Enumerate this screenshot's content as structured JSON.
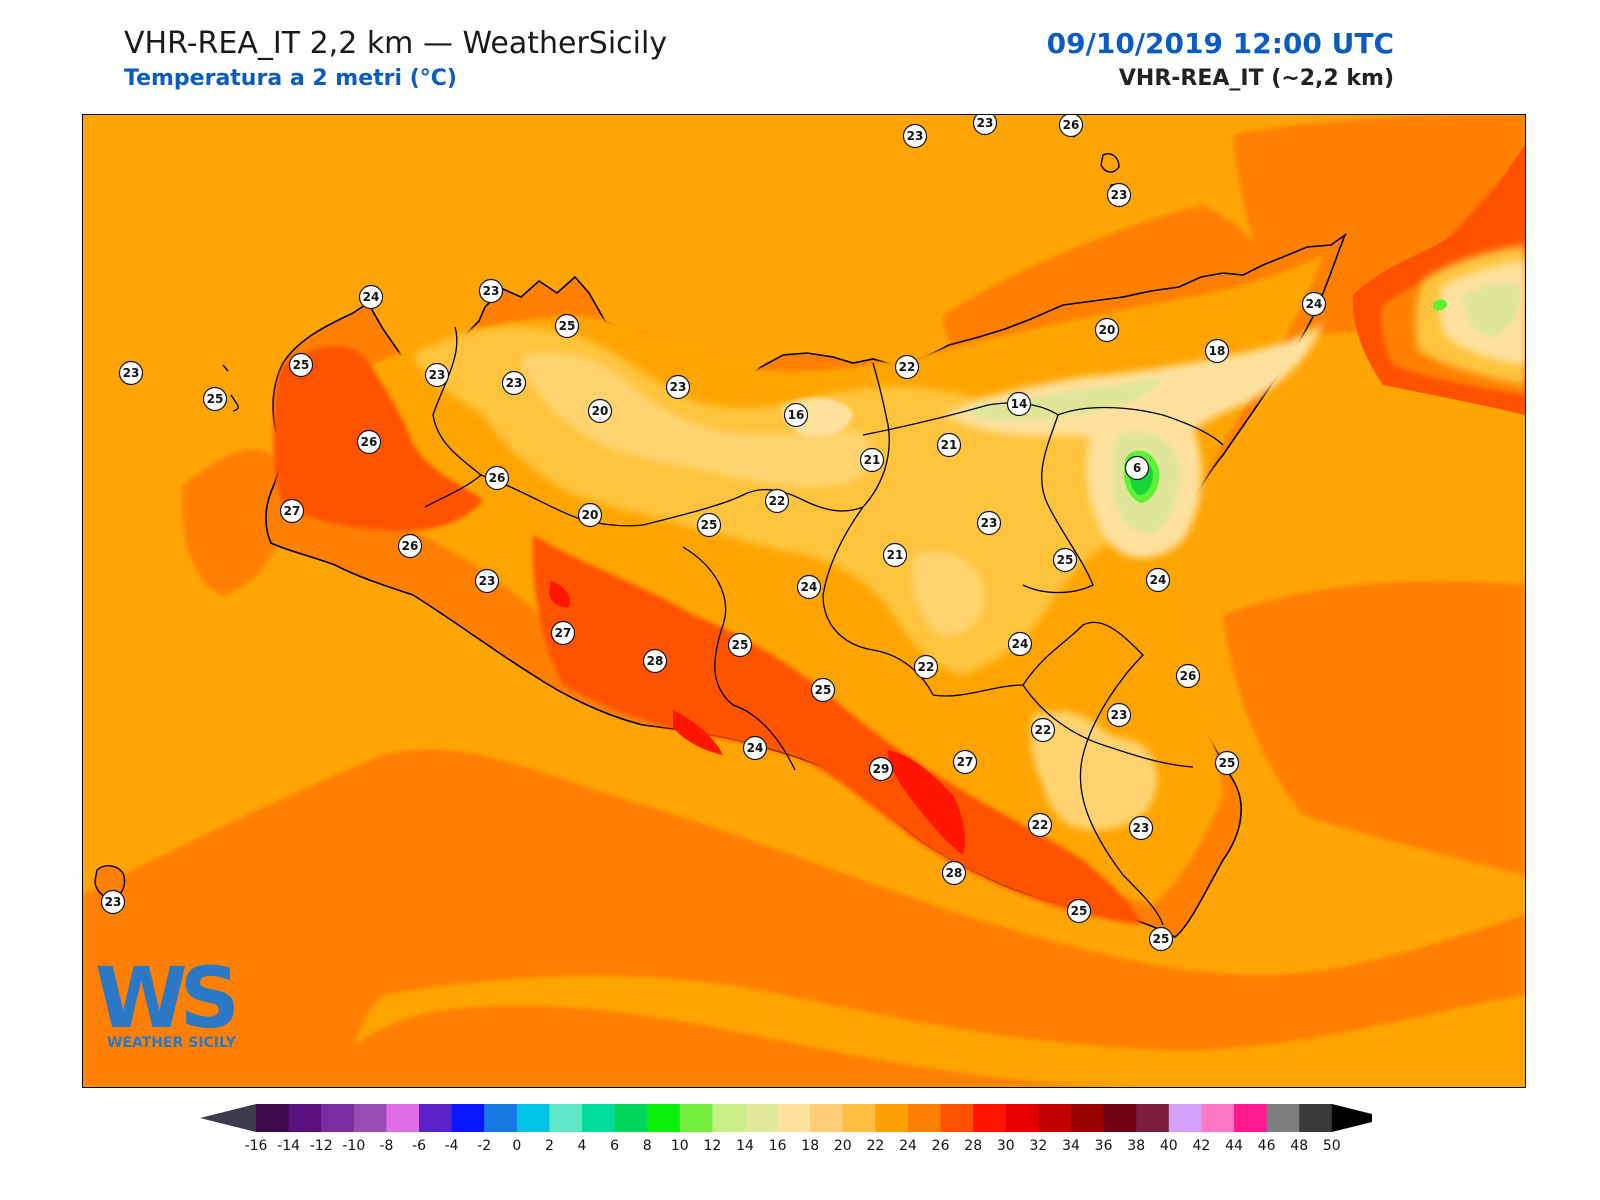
{
  "header": {
    "title_left": "VHR-REA_IT 2,2 km — WeatherSicily",
    "subtitle_left": "Temperatura a 2 metri (°C)",
    "title_right": "09/10/2019 12:00 UTC",
    "subtitle_right": "VHR-REA_IT (~2,2 km)"
  },
  "colors": {
    "title_blue": "#0b5bc0",
    "sea_base": "#fea405",
    "warm_26": "#ff8000",
    "hot_28": "#ff5200",
    "hot_30": "#ff1500",
    "land_22": "#ffc43d",
    "land_20": "#ffd470",
    "cool_18": "#ffe19e",
    "cool_14": "#dfe69a",
    "cool_10": "#5cf235",
    "cool_6": "#18d63a"
  },
  "logo": {
    "letters": "WS",
    "caption": "WEATHER SICILY"
  },
  "stations": [
    {
      "id": "s1",
      "value": "23"
    },
    {
      "id": "s2",
      "value": "23"
    },
    {
      "id": "s3",
      "value": "26"
    },
    {
      "id": "s4",
      "value": "23"
    },
    {
      "id": "s5",
      "value": "24"
    },
    {
      "id": "s6",
      "value": "23"
    },
    {
      "id": "s7",
      "value": "25"
    },
    {
      "id": "s8",
      "value": "23"
    },
    {
      "id": "s9",
      "value": "23"
    },
    {
      "id": "s10",
      "value": "25"
    },
    {
      "id": "s11",
      "value": "26"
    },
    {
      "id": "s12",
      "value": "25"
    },
    {
      "id": "s13",
      "value": "23"
    },
    {
      "id": "s14",
      "value": "20"
    },
    {
      "id": "s15",
      "value": "23"
    },
    {
      "id": "s16",
      "value": "16"
    },
    {
      "id": "s17",
      "value": "22"
    },
    {
      "id": "s18",
      "value": "20"
    },
    {
      "id": "s19",
      "value": "18"
    },
    {
      "id": "s20",
      "value": "24"
    },
    {
      "id": "s21",
      "value": "14"
    },
    {
      "id": "s22",
      "value": "21"
    },
    {
      "id": "s23",
      "value": "21"
    },
    {
      "id": "s24",
      "value": "6"
    },
    {
      "id": "s25",
      "value": "26"
    },
    {
      "id": "s26",
      "value": "27"
    },
    {
      "id": "s27",
      "value": "20"
    },
    {
      "id": "s28",
      "value": "25"
    },
    {
      "id": "s29",
      "value": "22"
    },
    {
      "id": "s30",
      "value": "23"
    },
    {
      "id": "s31",
      "value": "26"
    },
    {
      "id": "s32",
      "value": "21"
    },
    {
      "id": "s33",
      "value": "25"
    },
    {
      "id": "s34",
      "value": "24"
    },
    {
      "id": "s35",
      "value": "23"
    },
    {
      "id": "s36",
      "value": "24"
    },
    {
      "id": "s37",
      "value": "27"
    },
    {
      "id": "s38",
      "value": "25"
    },
    {
      "id": "s39",
      "value": "24"
    },
    {
      "id": "s40",
      "value": "28"
    },
    {
      "id": "s41",
      "value": "22"
    },
    {
      "id": "s42",
      "value": "26"
    },
    {
      "id": "s43",
      "value": "25"
    },
    {
      "id": "s44",
      "value": "23"
    },
    {
      "id": "s45",
      "value": "22"
    },
    {
      "id": "s46",
      "value": "24"
    },
    {
      "id": "s47",
      "value": "29"
    },
    {
      "id": "s48",
      "value": "27"
    },
    {
      "id": "s49",
      "value": "25"
    },
    {
      "id": "s50",
      "value": "22"
    },
    {
      "id": "s51",
      "value": "23"
    },
    {
      "id": "s52",
      "value": "23"
    },
    {
      "id": "s53",
      "value": "28"
    },
    {
      "id": "s54",
      "value": "25"
    },
    {
      "id": "s55",
      "value": "25"
    }
  ],
  "legend": {
    "ticks": [
      "-16",
      "-14",
      "-12",
      "-10",
      "-8",
      "-6",
      "-4",
      "-2",
      "0",
      "2",
      "4",
      "6",
      "8",
      "10",
      "12",
      "14",
      "16",
      "18",
      "20",
      "22",
      "24",
      "26",
      "28",
      "30",
      "32",
      "34",
      "36",
      "38",
      "40",
      "42",
      "44",
      "46",
      "48",
      "50"
    ],
    "colors": [
      "#3d0a4a",
      "#5b1080",
      "#7a2b9e",
      "#9a4cb6",
      "#df6ee8",
      "#5a22c8",
      "#0a16ff",
      "#1677e0",
      "#00c3e6",
      "#5ee8c8",
      "#00dc9e",
      "#00d65a",
      "#0af00a",
      "#74ed3e",
      "#c8ee87",
      "#e0e89c",
      "#ffe19e",
      "#ffcd74",
      "#ffbe42",
      "#ff9e00",
      "#ff8000",
      "#ff5200",
      "#ff1500",
      "#e60000",
      "#c20000",
      "#9a0000",
      "#6e0010",
      "#7a1e3c",
      "#d4a0fa",
      "#ff78c8",
      "#ff1a90",
      "#7d7d7d",
      "#3a3a3a"
    ],
    "under_color": "#3b3b4a",
    "over_color": "#000000"
  }
}
